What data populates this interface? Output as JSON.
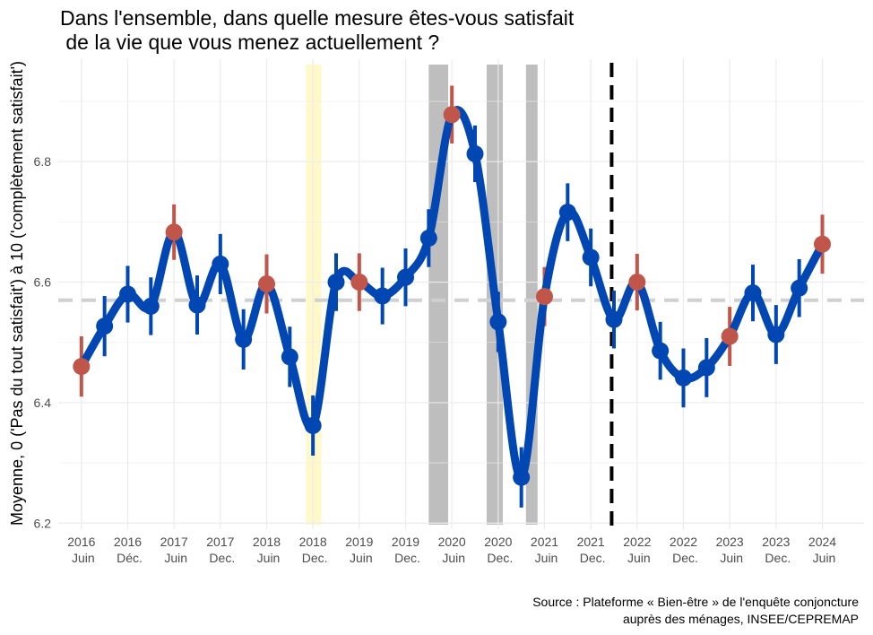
{
  "chart_data": {
    "type": "line",
    "title_lines": [
      "Dans l'ensemble, dans quelle mesure êtes-vous satisfait",
      " de la vie que vous menez actuellement ?"
    ],
    "ylabel": "Moyenne, 0 ('Pas du tout satisfait') à 10 ('complètement satisfait')",
    "ylim": [
      6.19,
      6.97
    ],
    "yticks": [
      6.2,
      6.4,
      6.6,
      6.8
    ],
    "ytick_labels": [
      "6.2",
      "6.4",
      "6.6",
      "6.8"
    ],
    "xlim": [
      -0.5,
      16.9
    ],
    "xticks": [
      {
        "x": 0,
        "year": "2016",
        "period": "Juin"
      },
      {
        "x": 1,
        "year": "2016",
        "period": "Déc."
      },
      {
        "x": 2,
        "year": "2017",
        "period": "Juin"
      },
      {
        "x": 3,
        "year": "2017",
        "period": "Dec."
      },
      {
        "x": 4,
        "year": "2018",
        "period": "Juin"
      },
      {
        "x": 5,
        "year": "2018",
        "period": "Dec."
      },
      {
        "x": 6,
        "year": "2019",
        "period": "Juin"
      },
      {
        "x": 7,
        "year": "2019",
        "period": "Dec."
      },
      {
        "x": 8,
        "year": "2020",
        "period": "Juin"
      },
      {
        "x": 9,
        "year": "2020",
        "period": "Dec."
      },
      {
        "x": 10,
        "year": "2021",
        "period": "Juin"
      },
      {
        "x": 11,
        "year": "2021",
        "period": "Dec."
      },
      {
        "x": 12,
        "year": "2022",
        "period": "Juin"
      },
      {
        "x": 13,
        "year": "2022",
        "period": "Dec."
      },
      {
        "x": 14,
        "year": "2023",
        "period": "Juin"
      },
      {
        "x": 15,
        "year": "2023",
        "period": "Dec."
      },
      {
        "x": 16,
        "year": "2024",
        "period": "Juin"
      }
    ],
    "mean_line": 6.57,
    "vertical_dashed_line_x": 11.45,
    "shaded_bands": [
      {
        "x0": 4.85,
        "x1": 5.18,
        "color": "#fff9c9"
      },
      {
        "x0": 7.5,
        "x1": 7.92,
        "color": "#bebebe"
      },
      {
        "x0": 8.75,
        "x1": 9.1,
        "color": "#bebebe"
      },
      {
        "x0": 9.6,
        "x1": 9.85,
        "color": "#bebebe"
      }
    ],
    "series": [
      {
        "name": "satisfaction_moyenne",
        "points": [
          {
            "x": 0,
            "y": 6.46,
            "lo": 6.41,
            "hi": 6.51,
            "hl": true
          },
          {
            "x": 0.5,
            "y": 6.527,
            "lo": 6.477,
            "hi": 6.577,
            "hl": false
          },
          {
            "x": 1,
            "y": 6.58,
            "lo": 6.533,
            "hi": 6.627,
            "hl": false
          },
          {
            "x": 1.5,
            "y": 6.56,
            "lo": 6.512,
            "hi": 6.608,
            "hl": false
          },
          {
            "x": 2,
            "y": 6.683,
            "lo": 6.637,
            "hi": 6.729,
            "hl": true
          },
          {
            "x": 2.5,
            "y": 6.562,
            "lo": 6.513,
            "hi": 6.611,
            "hl": false
          },
          {
            "x": 3,
            "y": 6.63,
            "lo": 6.58,
            "hi": 6.68,
            "hl": false
          },
          {
            "x": 3.5,
            "y": 6.505,
            "lo": 6.455,
            "hi": 6.555,
            "hl": false
          },
          {
            "x": 4,
            "y": 6.597,
            "lo": 6.548,
            "hi": 6.646,
            "hl": true
          },
          {
            "x": 4.5,
            "y": 6.476,
            "lo": 6.426,
            "hi": 6.526,
            "hl": false
          },
          {
            "x": 5,
            "y": 6.362,
            "lo": 6.312,
            "hi": 6.412,
            "hl": false
          },
          {
            "x": 5.5,
            "y": 6.6,
            "lo": 6.552,
            "hi": 6.648,
            "hl": false
          },
          {
            "x": 6,
            "y": 6.6,
            "lo": 6.552,
            "hi": 6.648,
            "hl": true
          },
          {
            "x": 6.5,
            "y": 6.577,
            "lo": 6.53,
            "hi": 6.624,
            "hl": false
          },
          {
            "x": 7,
            "y": 6.608,
            "lo": 6.56,
            "hi": 6.656,
            "hl": false
          },
          {
            "x": 7.5,
            "y": 6.673,
            "lo": 6.625,
            "hi": 6.721,
            "hl": false
          },
          {
            "x": 8,
            "y": 6.878,
            "lo": 6.83,
            "hi": 6.926,
            "hl": true
          },
          {
            "x": 8.5,
            "y": 6.813,
            "lo": 6.766,
            "hi": 6.86,
            "hl": false
          },
          {
            "x": 9,
            "y": 6.534,
            "lo": 6.484,
            "hi": 6.584,
            "hl": false
          },
          {
            "x": 9.5,
            "y": 6.276,
            "lo": 6.226,
            "hi": 6.326,
            "hl": false
          },
          {
            "x": 10,
            "y": 6.576,
            "lo": 6.527,
            "hi": 6.625,
            "hl": true
          },
          {
            "x": 10.5,
            "y": 6.716,
            "lo": 6.668,
            "hi": 6.764,
            "hl": false
          },
          {
            "x": 11,
            "y": 6.641,
            "lo": 6.593,
            "hi": 6.689,
            "hl": false
          },
          {
            "x": 11.5,
            "y": 6.538,
            "lo": 6.49,
            "hi": 6.586,
            "hl": false
          },
          {
            "x": 12,
            "y": 6.6,
            "lo": 6.553,
            "hi": 6.647,
            "hl": true
          },
          {
            "x": 12.5,
            "y": 6.486,
            "lo": 6.438,
            "hi": 6.534,
            "hl": false
          },
          {
            "x": 13,
            "y": 6.441,
            "lo": 6.392,
            "hi": 6.49,
            "hl": false
          },
          {
            "x": 13.5,
            "y": 6.458,
            "lo": 6.409,
            "hi": 6.507,
            "hl": false
          },
          {
            "x": 14,
            "y": 6.51,
            "lo": 6.461,
            "hi": 6.559,
            "hl": true
          },
          {
            "x": 14.5,
            "y": 6.582,
            "lo": 6.535,
            "hi": 6.629,
            "hl": false
          },
          {
            "x": 15,
            "y": 6.513,
            "lo": 6.464,
            "hi": 6.562,
            "hl": false
          },
          {
            "x": 15.5,
            "y": 6.59,
            "lo": 6.542,
            "hi": 6.638,
            "hl": false
          },
          {
            "x": 16,
            "y": 6.663,
            "lo": 6.614,
            "hi": 6.712,
            "hl": true
          }
        ]
      }
    ],
    "colors": {
      "line": "#0047b3",
      "highlight": "#c0564a",
      "mean_line": "#d0d0d0",
      "grid": "#ebebeb"
    },
    "caption_lines": [
      "Source : Plateforme « Bien-être » de l'enquête conjoncture",
      "auprès des ménages, INSEE/CEPREMAP"
    ]
  }
}
